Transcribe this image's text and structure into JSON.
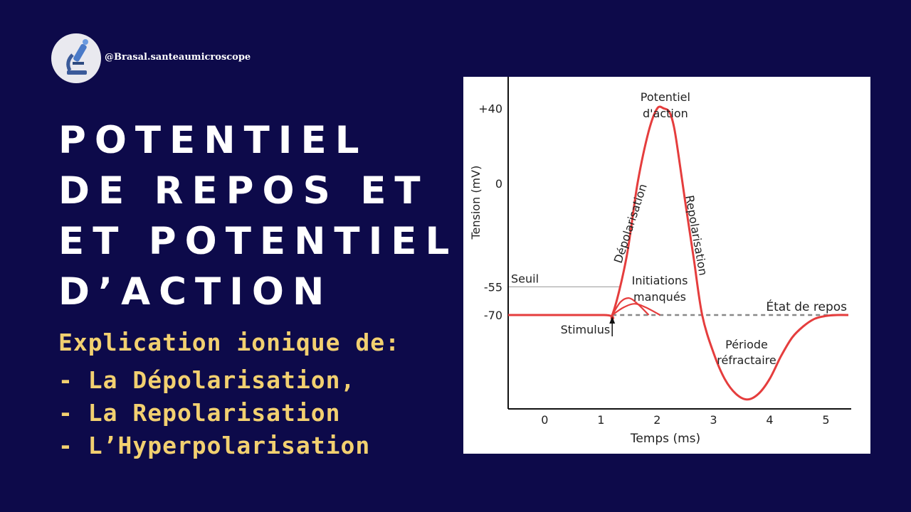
{
  "header": {
    "handle": "@Brasal.santeaumicroscope",
    "avatar_icon": "microscope-icon"
  },
  "title_lines": [
    "POTENTIEL",
    "DE REPOS ET",
    "ET POTENTIEL",
    "D’ACTION"
  ],
  "subtitle": "Explication ionique de:",
  "bullets": [
    "- La Dépolarisation,",
    "- La Repolarisation",
    "- L’Hyperpolarisation"
  ],
  "colors": {
    "background": "#0d0a4a",
    "title": "#ffffff",
    "accent": "#f2d070",
    "curve": "#e53d3d"
  },
  "chart_data": {
    "type": "line",
    "xlabel": "Temps (ms)",
    "ylabel": "Tension (mV)",
    "x_ticks": [
      0,
      1,
      2,
      3,
      4,
      5
    ],
    "y_ticks": [
      {
        "value": 40,
        "label": "+40"
      },
      {
        "value": 0,
        "label": "0"
      },
      {
        "value": -55,
        "label": "-55"
      },
      {
        "value": -70,
        "label": "-70"
      }
    ],
    "xlim": [
      -0.65,
      5.45
    ],
    "ylim": [
      -120,
      55
    ],
    "series": [
      {
        "x": [
          -0.65,
          1.05,
          1.2,
          1.45,
          1.65,
          1.85,
          2.0,
          2.12,
          2.22,
          2.3,
          2.38,
          2.5,
          2.65,
          2.8,
          3.0,
          3.2,
          3.4,
          3.6,
          3.8,
          4.0,
          4.2,
          4.4,
          4.6,
          4.8,
          5.0,
          5.2,
          5.4
        ],
        "y": [
          -70,
          -70,
          -70,
          -40,
          0,
          28,
          40,
          40,
          38,
          30,
          15,
          -10,
          -40,
          -70,
          -90,
          -104,
          -112,
          -115,
          -112,
          -104,
          -92,
          -82,
          -76,
          -72,
          -70.5,
          -70,
          -70
        ]
      }
    ],
    "failed_initiations": [
      {
        "x": [
          1.2,
          1.35,
          1.5,
          1.65,
          1.85
        ],
        "y": [
          -70,
          -63,
          -61,
          -64,
          -70
        ]
      },
      {
        "x": [
          1.2,
          1.4,
          1.6,
          1.8,
          2.05
        ],
        "y": [
          -70,
          -66,
          -64,
          -66,
          -70
        ]
      }
    ],
    "threshold": {
      "value": -55,
      "label": "Seuil"
    },
    "resting_state": {
      "value": -70,
      "label": "État de repos"
    },
    "stimulus": {
      "x": 1.2,
      "label": "Stimulus"
    },
    "annotations": {
      "peak": [
        "Potentiel",
        "d'action"
      ],
      "depolarisation": "Dépolarisation",
      "repolarisation": "Repolarisation",
      "failed": [
        "Initiations",
        "manqués"
      ],
      "refractory": [
        "Période",
        "réfractaire"
      ]
    }
  }
}
